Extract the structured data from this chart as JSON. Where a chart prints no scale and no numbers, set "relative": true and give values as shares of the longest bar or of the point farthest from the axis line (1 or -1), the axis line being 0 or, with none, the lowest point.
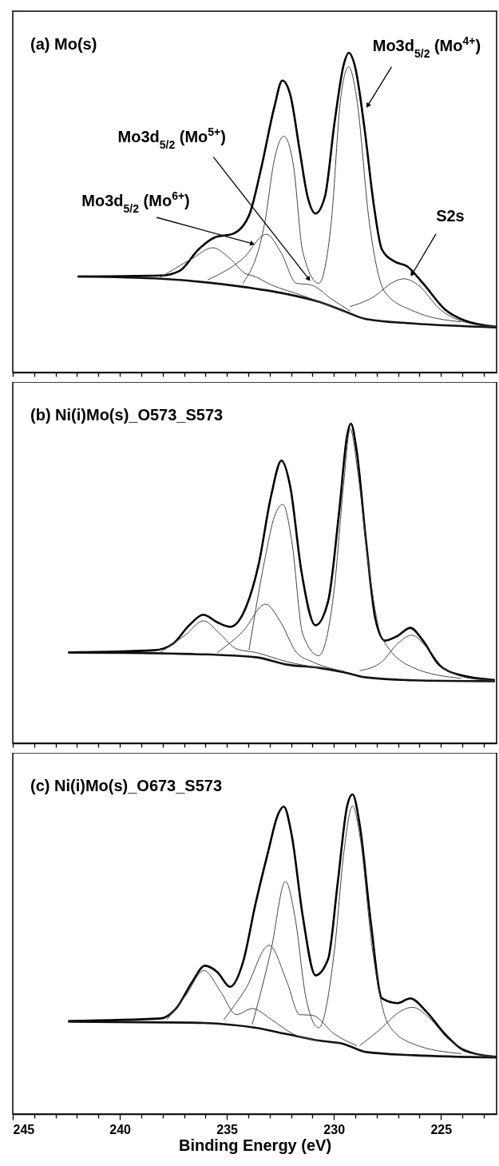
{
  "chart_data": [
    {
      "type": "line",
      "title": "(a) Mo(s)",
      "relative": true,
      "xlim": [
        245,
        222.4
      ],
      "xticks": [
        {
          "value": 245,
          "label": null
        },
        {
          "value": 244,
          "label": null
        },
        {
          "value": 243,
          "label": null
        },
        {
          "value": 242,
          "label": null
        },
        {
          "value": 241,
          "label": null
        },
        {
          "value": 240,
          "label": null
        },
        {
          "value": 239,
          "label": null
        },
        {
          "value": 238,
          "label": null
        },
        {
          "value": 237,
          "label": null
        },
        {
          "value": 236,
          "label": null
        },
        {
          "value": 235,
          "label": null
        },
        {
          "value": 234,
          "label": null
        },
        {
          "value": 233,
          "label": null
        },
        {
          "value": 232,
          "label": null
        },
        {
          "value": 231,
          "label": null
        },
        {
          "value": 230,
          "label": null
        },
        {
          "value": 229,
          "label": null
        },
        {
          "value": 228,
          "label": null
        },
        {
          "value": 227,
          "label": null
        },
        {
          "value": 226,
          "label": null
        },
        {
          "value": 225,
          "label": null
        },
        {
          "value": 224,
          "label": null
        },
        {
          "value": 223,
          "label": null
        }
      ],
      "tick_labels": false,
      "annotations": [
        {
          "text": "Mo3d$_{5/2}$ (Mo$^{4+}$)",
          "x": 228.5,
          "y": 0.826
        },
        {
          "text": "Mo3d$_{5/2}$ (Mo$^{5+}$)",
          "x": 231.08,
          "y": 0.284
        },
        {
          "text": "Mo3d$_{5/2}$ (Mo$^{6+}$)",
          "x": 233.66,
          "y": 0.4
        },
        {
          "text": "S2s",
          "x": 226.43,
          "y": 0.298
        }
      ],
      "series": [
        {
          "color": "#000000",
          "x": [
            241.93,
            238.09,
            237.2,
            236.32,
            235.58,
            234.7,
            233.96,
            233.37,
            232.78,
            232.41,
            232.04,
            231.6,
            231.23,
            230.86,
            230.42,
            229.97,
            229.53,
            229.31,
            229.01,
            228.57,
            228.13,
            227.76,
            227.17,
            226.58,
            225.84,
            224.81,
            223.92,
            222.45
          ],
          "values": [
            0.3,
            0.303,
            0.318,
            0.385,
            0.422,
            0.434,
            0.492,
            0.647,
            0.831,
            0.913,
            0.869,
            0.695,
            0.55,
            0.497,
            0.55,
            0.782,
            0.966,
            1.0,
            0.956,
            0.763,
            0.521,
            0.385,
            0.347,
            0.332,
            0.279,
            0.197,
            0.163,
            0.143
          ]
        },
        {
          "color": "#111111",
          "x": [
            241.93,
            238.09,
            234.4,
            232.19,
            230.71,
            229.53,
            228.5,
            226.28,
            222.45
          ],
          "values": [
            0.3,
            0.293,
            0.269,
            0.245,
            0.221,
            0.192,
            0.167,
            0.153,
            0.141
          ]
        },
        {
          "color": "#444444",
          "x": [
            238.09,
            236.62,
            235.66,
            234.85,
            234.11,
            233.81,
            232.93,
            231.45,
            229.24
          ],
          "values": [
            0.298,
            0.356,
            0.39,
            0.356,
            0.308,
            0.303,
            0.274,
            0.24,
            0.182
          ]
        },
        {
          "color": "#444444",
          "x": [
            235.88,
            234.25,
            233.15,
            232.48,
            231.75,
            231.08,
            230.12,
            229.24
          ],
          "values": [
            0.29,
            0.356,
            0.432,
            0.376,
            0.279,
            0.274,
            0.23,
            0.192
          ]
        },
        {
          "color": "#444444",
          "x": [
            234.25,
            233.22,
            232.78,
            232.34,
            231.89,
            231.45,
            230.71,
            230.12,
            229.68,
            229.31,
            228.94,
            228.35,
            227.61,
            226.28,
            224.07
          ],
          "values": [
            0.279,
            0.472,
            0.666,
            0.739,
            0.647,
            0.376,
            0.279,
            0.472,
            0.86,
            0.956,
            0.86,
            0.472,
            0.25,
            0.192,
            0.158
          ]
        },
        {
          "color": "#444444",
          "x": [
            229.24,
            228.06,
            227.32,
            226.73,
            225.99,
            225.1,
            223.92,
            222.45
          ],
          "values": [
            0.206,
            0.24,
            0.279,
            0.293,
            0.269,
            0.201,
            0.158,
            0.143
          ]
        }
      ]
    },
    {
      "type": "line",
      "title": "(b) Ni(i)Mo(s)_O573_S573",
      "relative": true,
      "xlim": [
        245,
        222.4
      ],
      "xticks": [
        {
          "value": 245,
          "label": null
        },
        {
          "value": 244,
          "label": null
        },
        {
          "value": 243,
          "label": null
        },
        {
          "value": 242,
          "label": null
        },
        {
          "value": 241,
          "label": null
        },
        {
          "value": 240,
          "label": null
        },
        {
          "value": 239,
          "label": null
        },
        {
          "value": 238,
          "label": null
        },
        {
          "value": 237,
          "label": null
        },
        {
          "value": 236,
          "label": null
        },
        {
          "value": 235,
          "label": null
        },
        {
          "value": 234,
          "label": null
        },
        {
          "value": 233,
          "label": null
        },
        {
          "value": 232,
          "label": null
        },
        {
          "value": 231,
          "label": null
        },
        {
          "value": 230,
          "label": null
        },
        {
          "value": 229,
          "label": null
        },
        {
          "value": 228,
          "label": null
        },
        {
          "value": 227,
          "label": null
        },
        {
          "value": 226,
          "label": null
        },
        {
          "value": 225,
          "label": null
        },
        {
          "value": 224,
          "label": null
        },
        {
          "value": 223,
          "label": null
        }
      ],
      "tick_labels": false,
      "series": [
        {
          "color": "#000000",
          "x": [
            242.37,
            238.39,
            237.5,
            236.76,
            236.1,
            235.44,
            234.85,
            234.11,
            233.52,
            232.93,
            232.45,
            232.04,
            231.52,
            230.86,
            230.27,
            229.75,
            229.38,
            229.21,
            228.94,
            228.5,
            228.06,
            227.61,
            227.02,
            226.43,
            225.84,
            225.1,
            224.07,
            222.52
          ],
          "values": [
            0.284,
            0.291,
            0.312,
            0.369,
            0.402,
            0.378,
            0.364,
            0.425,
            0.558,
            0.775,
            0.884,
            0.803,
            0.539,
            0.369,
            0.444,
            0.728,
            0.964,
            1.0,
            0.917,
            0.633,
            0.388,
            0.321,
            0.336,
            0.361,
            0.321,
            0.246,
            0.213,
            0.198
          ]
        },
        {
          "color": "#111111",
          "x": [
            242.37,
            236.62,
            233.66,
            232.19,
            230.71,
            229.53,
            228.5,
            226.28,
            222.52
          ],
          "values": [
            0.284,
            0.279,
            0.269,
            0.246,
            0.236,
            0.222,
            0.206,
            0.197,
            0.194
          ]
        },
        {
          "color": "#444444",
          "x": [
            238.09,
            236.91,
            236.1,
            235.29,
            234.55,
            233.66,
            232.19,
            230.71
          ],
          "values": [
            0.285,
            0.34,
            0.383,
            0.34,
            0.295,
            0.284,
            0.255,
            0.236
          ]
        },
        {
          "color": "#444444",
          "x": [
            235.44,
            234.25,
            233.19,
            232.48,
            231.75,
            231.01,
            229.53
          ],
          "values": [
            0.284,
            0.35,
            0.435,
            0.378,
            0.284,
            0.255,
            0.225
          ]
        },
        {
          "color": "#444444",
          "x": [
            233.96,
            233.22,
            232.78,
            232.38,
            231.97,
            231.45,
            230.71,
            229.97,
            229.53,
            229.24,
            228.87,
            228.35,
            227.76,
            226.28,
            224.07
          ],
          "values": [
            0.293,
            0.577,
            0.709,
            0.747,
            0.633,
            0.34,
            0.274,
            0.491,
            0.822,
            0.983,
            0.841,
            0.539,
            0.331,
            0.236,
            0.203
          ]
        },
        {
          "color": "#444444",
          "x": [
            228.79,
            227.76,
            227.02,
            226.36,
            225.69,
            224.81,
            223.33,
            222.52
          ],
          "values": [
            0.227,
            0.255,
            0.312,
            0.338,
            0.302,
            0.232,
            0.2,
            0.197
          ]
        }
      ]
    },
    {
      "type": "line",
      "title": "(c) Ni(i)Mo(s)_O673_S573",
      "xlabel": "Binding Energy (eV)",
      "relative": true,
      "xlim": [
        245,
        222.4
      ],
      "xticks": [
        245,
        {
          "value": 244,
          "label": null
        },
        {
          "value": 243,
          "label": null
        },
        {
          "value": 242,
          "label": null
        },
        {
          "value": 241,
          "label": null
        },
        240,
        {
          "value": 239,
          "label": null
        },
        {
          "value": 238,
          "label": null
        },
        {
          "value": 237,
          "label": null
        },
        {
          "value": 236,
          "label": null
        },
        235,
        {
          "value": 234,
          "label": null
        },
        {
          "value": 233,
          "label": null
        },
        {
          "value": 232,
          "label": null
        },
        {
          "value": 231,
          "label": null
        },
        230,
        {
          "value": 229,
          "label": null
        },
        {
          "value": 228,
          "label": null
        },
        {
          "value": 227,
          "label": null
        },
        {
          "value": 226,
          "label": null
        },
        225,
        {
          "value": 224,
          "label": null
        },
        {
          "value": 223,
          "label": null
        }
      ],
      "tick_labels": "x",
      "series": [
        {
          "color": "#000000",
          "x": [
            242.37,
            238.09,
            237.35,
            236.62,
            236.03,
            235.44,
            234.85,
            234.25,
            233.66,
            233.07,
            232.63,
            232.34,
            231.97,
            231.45,
            230.86,
            230.27,
            229.83,
            229.38,
            229.13,
            228.79,
            228.27,
            227.76,
            227.02,
            226.43,
            225.69,
            224.81,
            223.92,
            222.45
          ],
          "values": [
            0.291,
            0.299,
            0.332,
            0.413,
            0.464,
            0.444,
            0.398,
            0.474,
            0.658,
            0.821,
            0.934,
            0.962,
            0.872,
            0.617,
            0.434,
            0.485,
            0.719,
            0.964,
            1.0,
            0.903,
            0.597,
            0.362,
            0.347,
            0.362,
            0.321,
            0.25,
            0.199,
            0.179
          ]
        },
        {
          "color": "#111111",
          "x": [
            242.37,
            236.62,
            233.66,
            232.19,
            230.71,
            229.53,
            228.5,
            226.28,
            222.45
          ],
          "values": [
            0.289,
            0.286,
            0.27,
            0.25,
            0.23,
            0.219,
            0.194,
            0.184,
            0.177
          ]
        },
        {
          "color": "#444444",
          "x": [
            237.8,
            236.91,
            236.07,
            235.29,
            234.55,
            233.81,
            232.93,
            231.89,
            230.71
          ],
          "values": [
            0.296,
            0.372,
            0.449,
            0.383,
            0.311,
            0.33,
            0.296,
            0.25,
            0.23
          ]
        },
        {
          "color": "#444444",
          "x": [
            235.14,
            234.11,
            233.03,
            232.19,
            231.6,
            231.01,
            229.97,
            228.94
          ],
          "values": [
            0.296,
            0.393,
            0.528,
            0.413,
            0.311,
            0.309,
            0.25,
            0.214
          ]
        },
        {
          "color": "#444444",
          "x": [
            233.81,
            232.93,
            232.26,
            231.82,
            231.3,
            230.71,
            229.97,
            229.53,
            229.13,
            228.79,
            228.2,
            227.46,
            226.28,
            224.07
          ],
          "values": [
            0.281,
            0.515,
            0.728,
            0.617,
            0.362,
            0.27,
            0.515,
            0.821,
            0.964,
            0.872,
            0.515,
            0.281,
            0.219,
            0.189
          ]
        },
        {
          "color": "#444444",
          "x": [
            228.79,
            227.76,
            227.02,
            226.33,
            225.55,
            224.66,
            223.33,
            222.45
          ],
          "values": [
            0.214,
            0.27,
            0.316,
            0.334,
            0.301,
            0.235,
            0.189,
            0.179
          ]
        }
      ]
    }
  ]
}
